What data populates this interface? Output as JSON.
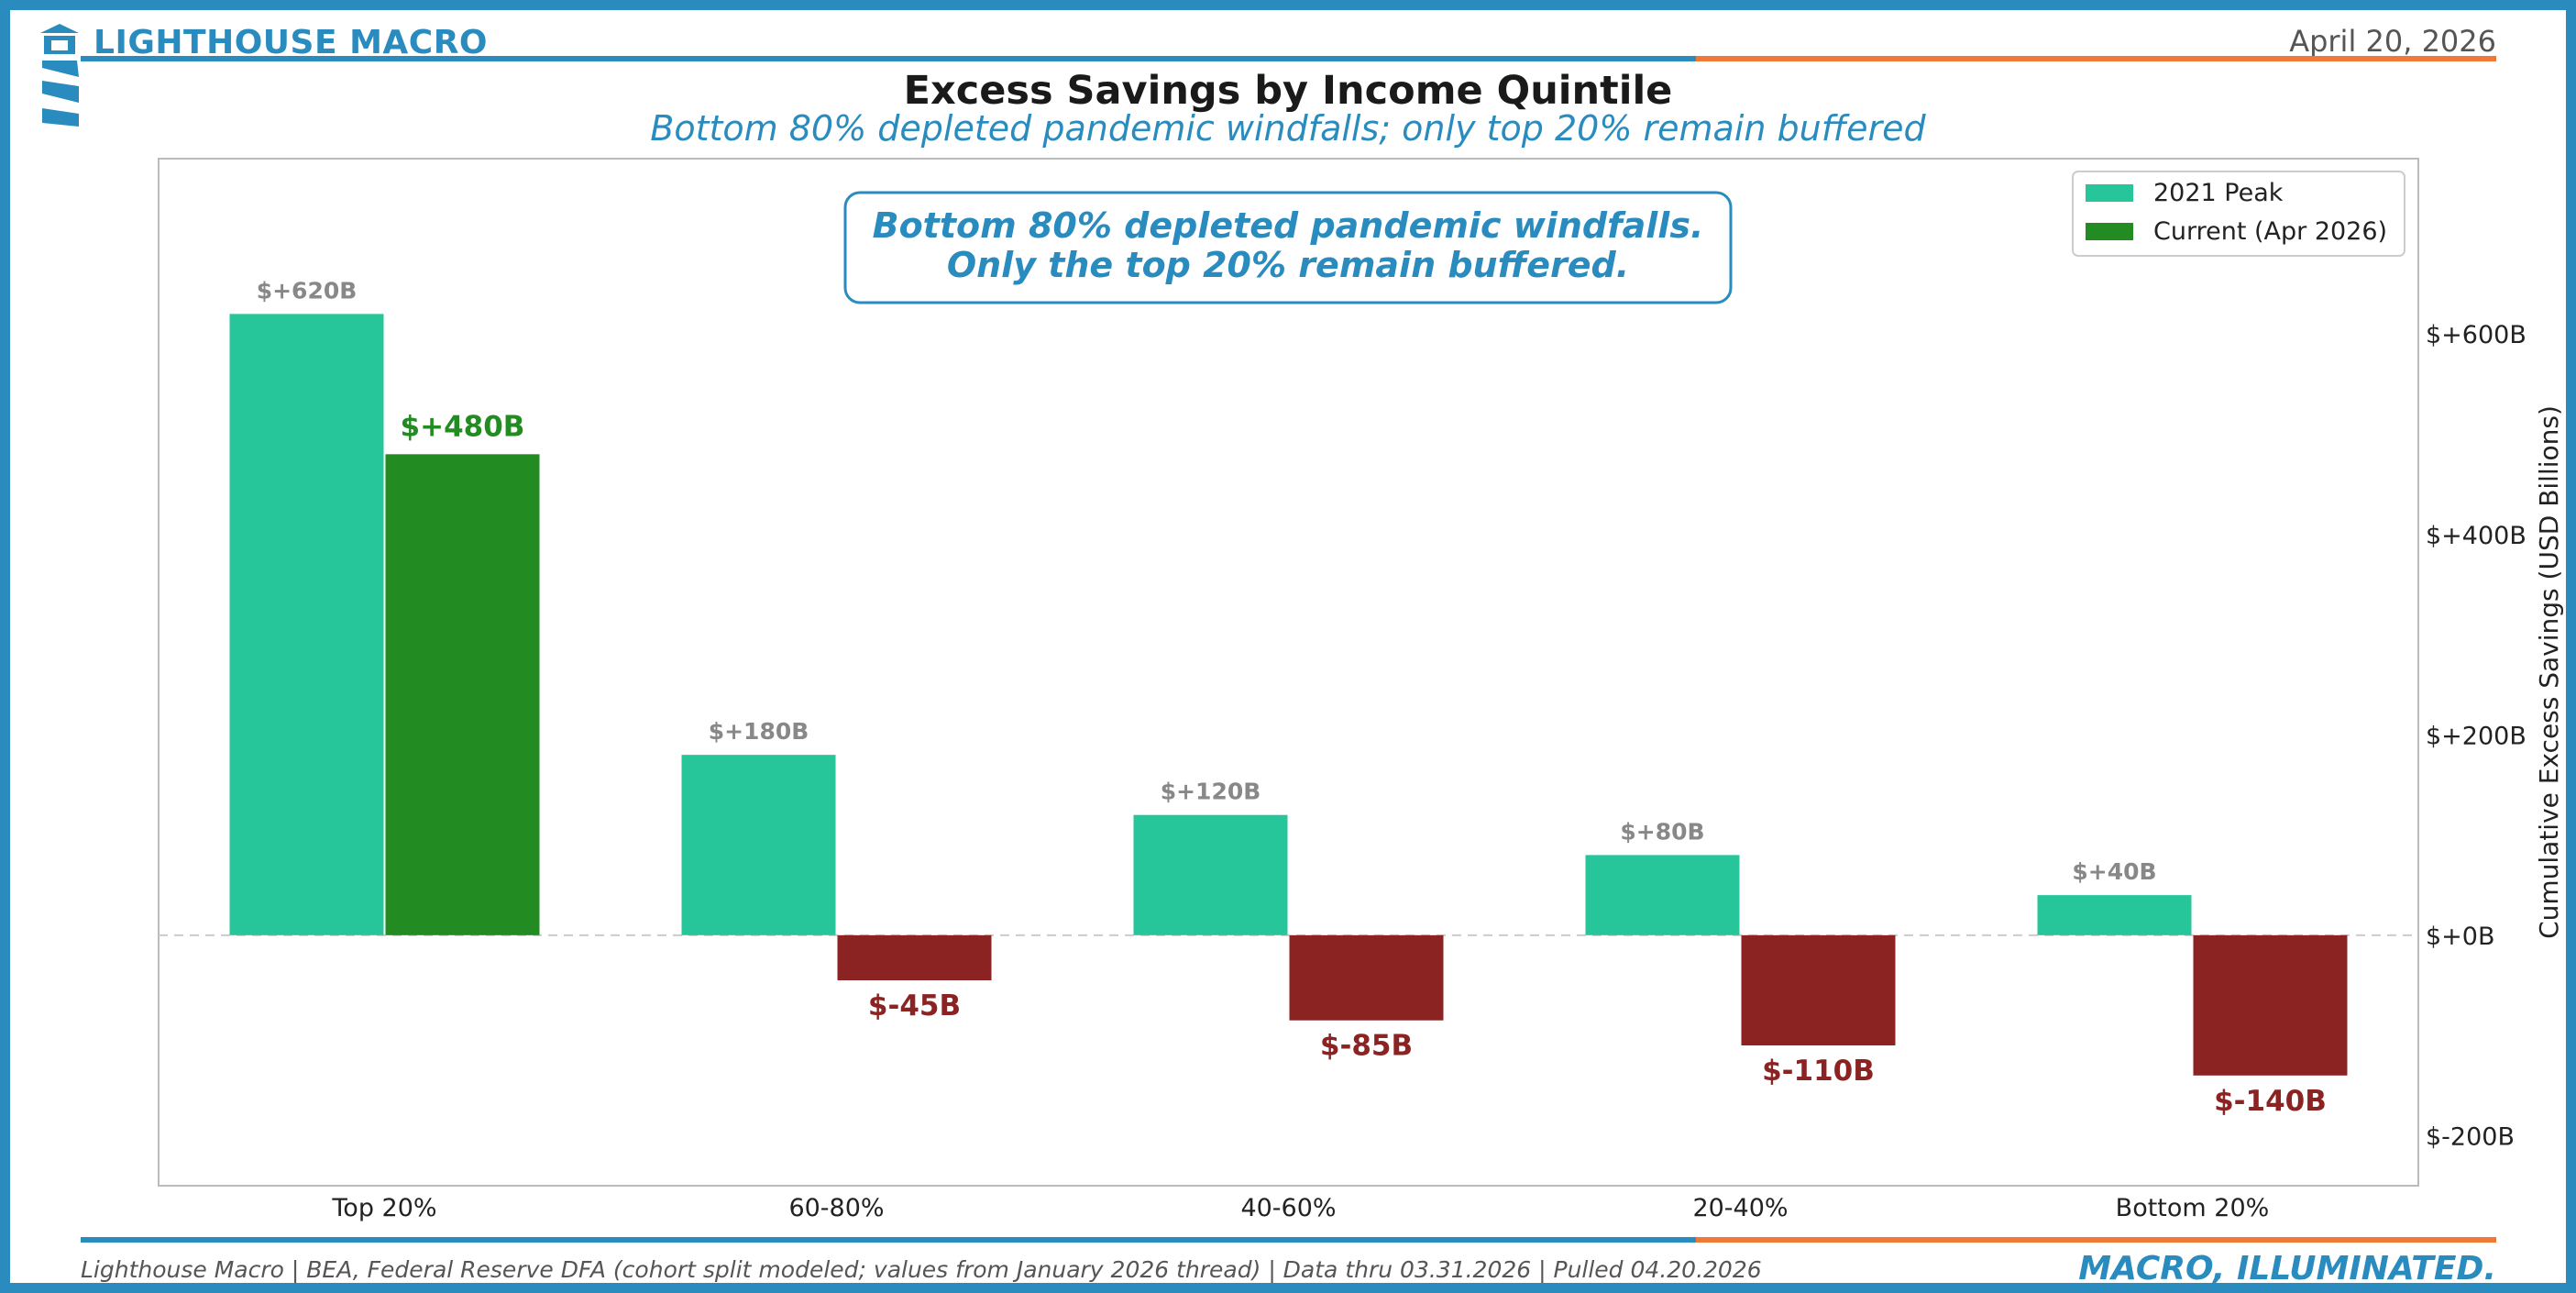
{
  "header": {
    "brand": "LIGHTHOUSE MACRO",
    "date": "April 20, 2026",
    "title": "Excess Savings by Income Quintile",
    "subtitle": "Bottom 80% depleted pandemic windfalls; only top 20% remain buffered"
  },
  "colors": {
    "brand_blue": "#2a8bbf",
    "accent_orange": "#f07a35",
    "peak": "#26c69a",
    "current_positive": "#228b22",
    "current_negative": "#8b2323",
    "muted_label": "#888888"
  },
  "chart_data": {
    "type": "bar",
    "categories": [
      "Top 20%",
      "60-80%",
      "40-60%",
      "20-40%",
      "Bottom 20%"
    ],
    "series": [
      {
        "name": "2021 Peak",
        "values": [
          620,
          180,
          120,
          80,
          40
        ]
      },
      {
        "name": "Current (Apr 2026)",
        "values": [
          480,
          -45,
          -85,
          -110,
          -140
        ]
      }
    ],
    "peak_labels": [
      "$+620B",
      "$+180B",
      "$+120B",
      "$+80B",
      "$+40B"
    ],
    "current_labels": [
      "$+480B",
      "$-45B",
      "$-85B",
      "$-110B",
      "$-140B"
    ],
    "ylabel": "Cumulative Excess Savings (USD Billions)",
    "ylim": [
      -250,
      775
    ],
    "y_ticks": [
      -200,
      0,
      200,
      400,
      600
    ],
    "y_tick_labels": [
      "$-200B",
      "$+0B",
      "$+200B",
      "$+400B",
      "$+600B"
    ],
    "y_axis_side": "right",
    "zero_line": "dashed",
    "legend_position": "top-right",
    "annotation": {
      "line1": "Bottom 80% depleted pandemic windfalls.",
      "line2": "Only the top 20% remain buffered."
    }
  },
  "footer": {
    "source": "Lighthouse Macro | BEA, Federal Reserve DFA (cohort split modeled; values from January 2026 thread) | Data thru 03.31.2026 | Pulled 04.20.2026",
    "tagline": "MACRO, ILLUMINATED."
  }
}
